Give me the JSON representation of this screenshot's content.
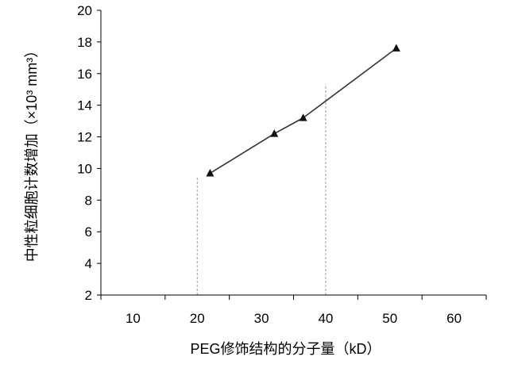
{
  "chart_data": {
    "type": "line",
    "xlabel": "PEG修饰结构的分子量（kD）",
    "ylabel": "中性粒细胞计数增加（×10³ mm³）",
    "xlim": [
      5,
      65
    ],
    "ylim": [
      2,
      20
    ],
    "xticks": [
      10,
      20,
      30,
      40,
      50,
      60
    ],
    "yticks": [
      2,
      4,
      6,
      8,
      10,
      12,
      14,
      16,
      18,
      20
    ],
    "series": [
      {
        "marker": "triangle",
        "color": "#333333",
        "x": [
          22,
          32,
          36.5,
          51
        ],
        "y": [
          9.7,
          12.2,
          13.2,
          17.6
        ]
      }
    ],
    "reference_lines": [
      {
        "x": 20,
        "y_top": 9.5,
        "style": "dashed"
      },
      {
        "x": 40,
        "y_top": 15.3,
        "style": "dashed"
      }
    ],
    "grid": false,
    "legend": "none"
  }
}
